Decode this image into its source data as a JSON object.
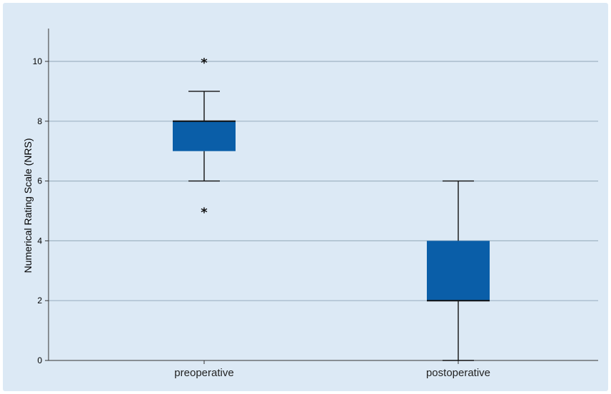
{
  "chart_data": {
    "type": "boxplot",
    "title": "",
    "xlabel": "",
    "ylabel": "Numerical Rating Scale (NRS)",
    "ylim": [
      0,
      11
    ],
    "yticks": [
      0,
      2,
      4,
      6,
      8,
      10
    ],
    "grid": true,
    "categories": [
      "preoperative",
      "postoperative"
    ],
    "boxes": [
      {
        "category": "preoperative",
        "whisker_low": 6,
        "q1": 7,
        "median": 8,
        "q3": 8,
        "whisker_high": 9,
        "outliers": [
          5,
          10
        ]
      },
      {
        "category": "postoperative",
        "whisker_low": 0,
        "q1": 2,
        "median": 2,
        "q3": 4,
        "whisker_high": 6,
        "outliers": []
      }
    ],
    "colors": {
      "box": "#0a5ea8",
      "background": "#dce9f5",
      "grid": "#9fb3c4",
      "axis": "#333333"
    }
  }
}
